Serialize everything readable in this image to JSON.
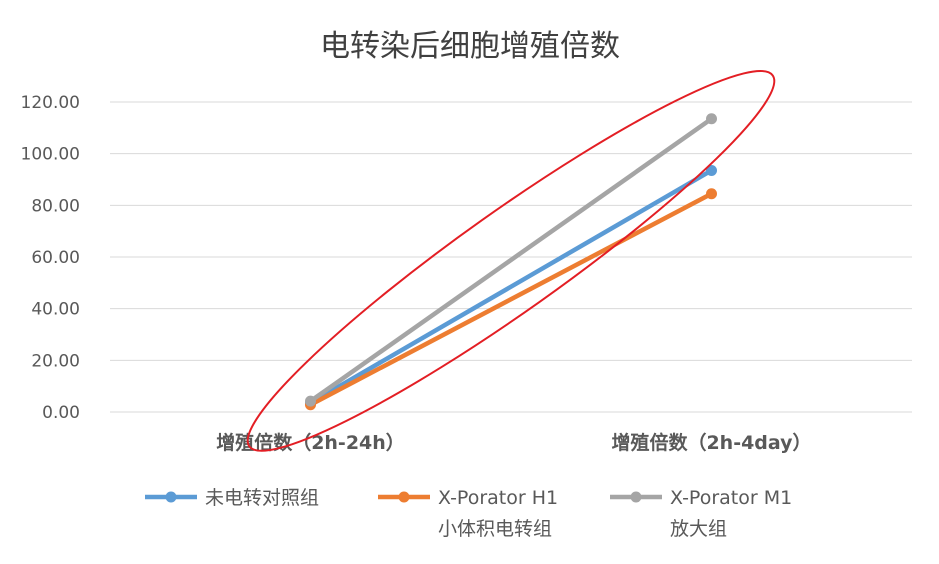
{
  "chart_data": {
    "type": "line",
    "title": "电转染后细胞增殖倍数",
    "xlabel": "",
    "ylabel": "",
    "categories": [
      "增殖倍数（2h-24h）",
      "增殖倍数（2h-4day）"
    ],
    "ylim": [
      0,
      120
    ],
    "yticks": [
      "0.00",
      "20.00",
      "40.00",
      "60.00",
      "80.00",
      "100.00",
      "120.00"
    ],
    "grid": true,
    "legend": "bottom",
    "series": [
      {
        "name_lines": [
          "未电转对照组"
        ],
        "values": [
          3.5,
          93.5
        ],
        "color": "#5B9BD5"
      },
      {
        "name_lines": [
          "X-Porator H1",
          "小体积电转组"
        ],
        "values": [
          2.8,
          84.5
        ],
        "color": "#ED7D31"
      },
      {
        "name_lines": [
          "X-Porator M1",
          "放大组"
        ],
        "values": [
          4.2,
          113.5
        ],
        "color": "#A5A5A5"
      }
    ],
    "annotation": {
      "shape": "ellipse",
      "color": "#E31E24"
    }
  }
}
